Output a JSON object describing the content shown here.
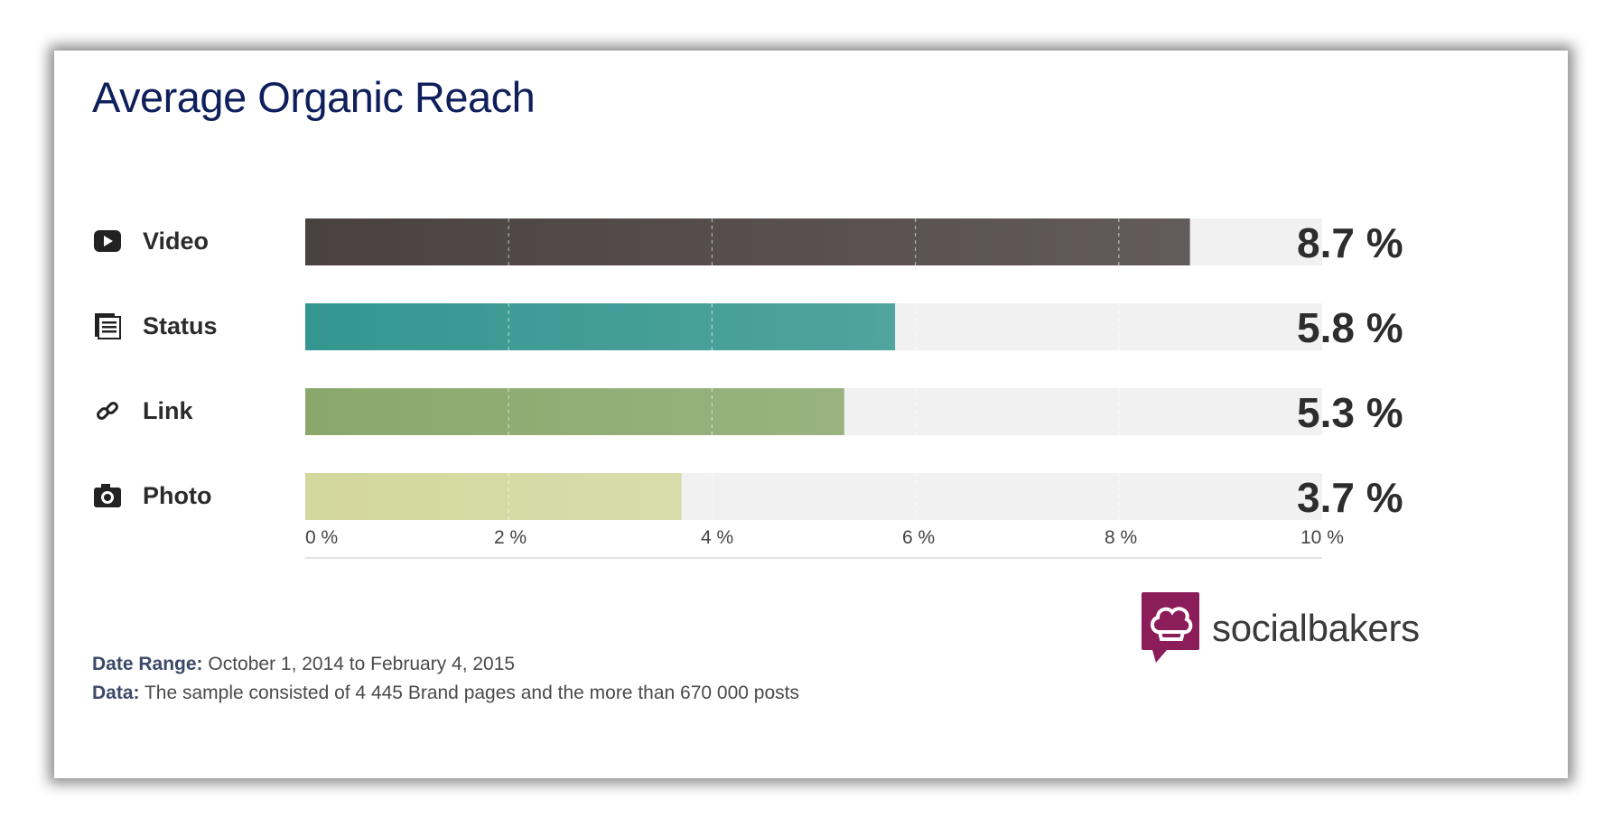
{
  "chart_data": {
    "type": "bar",
    "orientation": "horizontal",
    "title": "Average Organic Reach",
    "categories": [
      "Video",
      "Status",
      "Link",
      "Photo"
    ],
    "values": [
      8.7,
      5.8,
      5.3,
      3.7
    ],
    "value_labels": [
      "8.7 %",
      "5.8 %",
      "5.3 %",
      "3.7 %"
    ],
    "xlim": [
      0,
      10
    ],
    "x_ticks": [
      0,
      2,
      4,
      6,
      8,
      10
    ],
    "x_tick_labels": [
      "0 %",
      "2 %",
      "4 %",
      "6 %",
      "8 %",
      "10 %"
    ],
    "grid": true,
    "colors": [
      "#4a4141",
      "#349690",
      "#8aa86c",
      "#d3d89e"
    ],
    "category_icons": [
      "video-icon",
      "status-icon",
      "link-icon",
      "photo-icon"
    ]
  },
  "footer": {
    "date_range_label": "Date Range:",
    "date_range_value": "October 1, 2014 to February 4, 2015",
    "data_label": "Data:",
    "data_value": "The sample consisted of 4 445 Brand pages and the more than 670 000 posts"
  },
  "brand": {
    "name": "socialbakers",
    "logo_icon": "chef-hat-icon",
    "logo_color": "#8c1d5b"
  }
}
